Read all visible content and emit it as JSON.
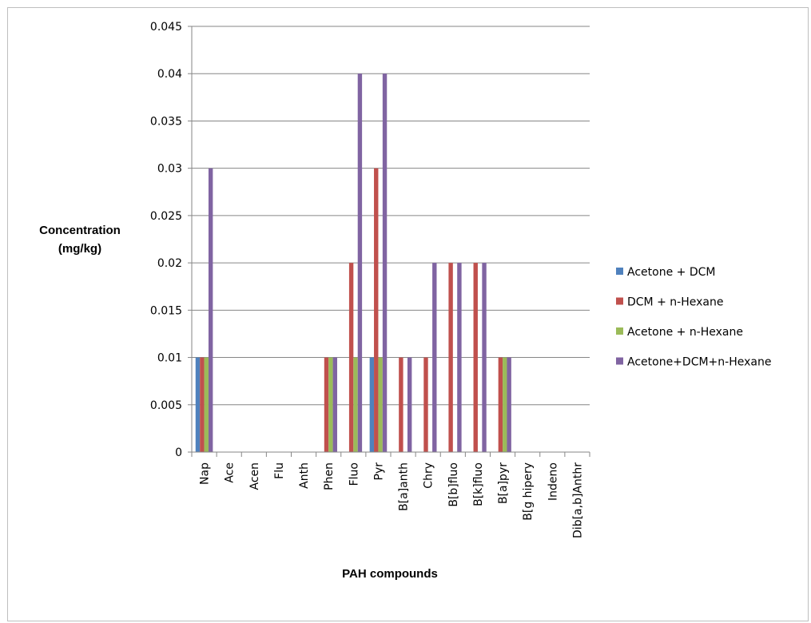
{
  "chart_data": {
    "type": "bar",
    "ylabel_lines": [
      "Concentration",
      "(mg/kg)"
    ],
    "xlabel": "PAH compounds",
    "ylim": [
      0,
      0.045
    ],
    "yticks": [
      "0",
      "0.005",
      "0.01",
      "0.015",
      "0.02",
      "0.025",
      "0.03",
      "0.035",
      "0.04",
      "0.045"
    ],
    "categories": [
      "Nap",
      "Acе",
      "Acen",
      "Flu",
      "Anth",
      "Phen",
      "Fluo",
      "Pyr",
      "B[a]anth",
      "Chry",
      "B[b]fluo",
      "B[k]fluo",
      "B[a]pyr",
      "B[g hipery",
      "Indeno",
      "Dib[a,b]Anthr"
    ],
    "series": [
      {
        "name": "Acetone + DCM",
        "color": "#4f81bd",
        "values": [
          0.01,
          0,
          0,
          0,
          0,
          0,
          0,
          0.01,
          0,
          0,
          0,
          0,
          0,
          0,
          0,
          0
        ]
      },
      {
        "name": "DCM + n-Hexane",
        "color": "#c0504d",
        "values": [
          0.01,
          0,
          0,
          0,
          0,
          0.01,
          0.02,
          0.03,
          0.01,
          0.01,
          0.02,
          0.02,
          0.01,
          0,
          0,
          0
        ]
      },
      {
        "name": "Acetone + n-Hexane",
        "color": "#9bbb59",
        "values": [
          0.01,
          0,
          0,
          0,
          0,
          0.01,
          0.01,
          0.01,
          0,
          0,
          0,
          0,
          0.01,
          0,
          0,
          0
        ]
      },
      {
        "name": "Acetone+DCM+n-Hexane",
        "color": "#8064a2",
        "values": [
          0.03,
          0,
          0,
          0,
          0,
          0.01,
          0.04,
          0.04,
          0.01,
          0.02,
          0.02,
          0.02,
          0.01,
          0,
          0,
          0
        ]
      }
    ],
    "legend_position": "right",
    "grid": true
  }
}
